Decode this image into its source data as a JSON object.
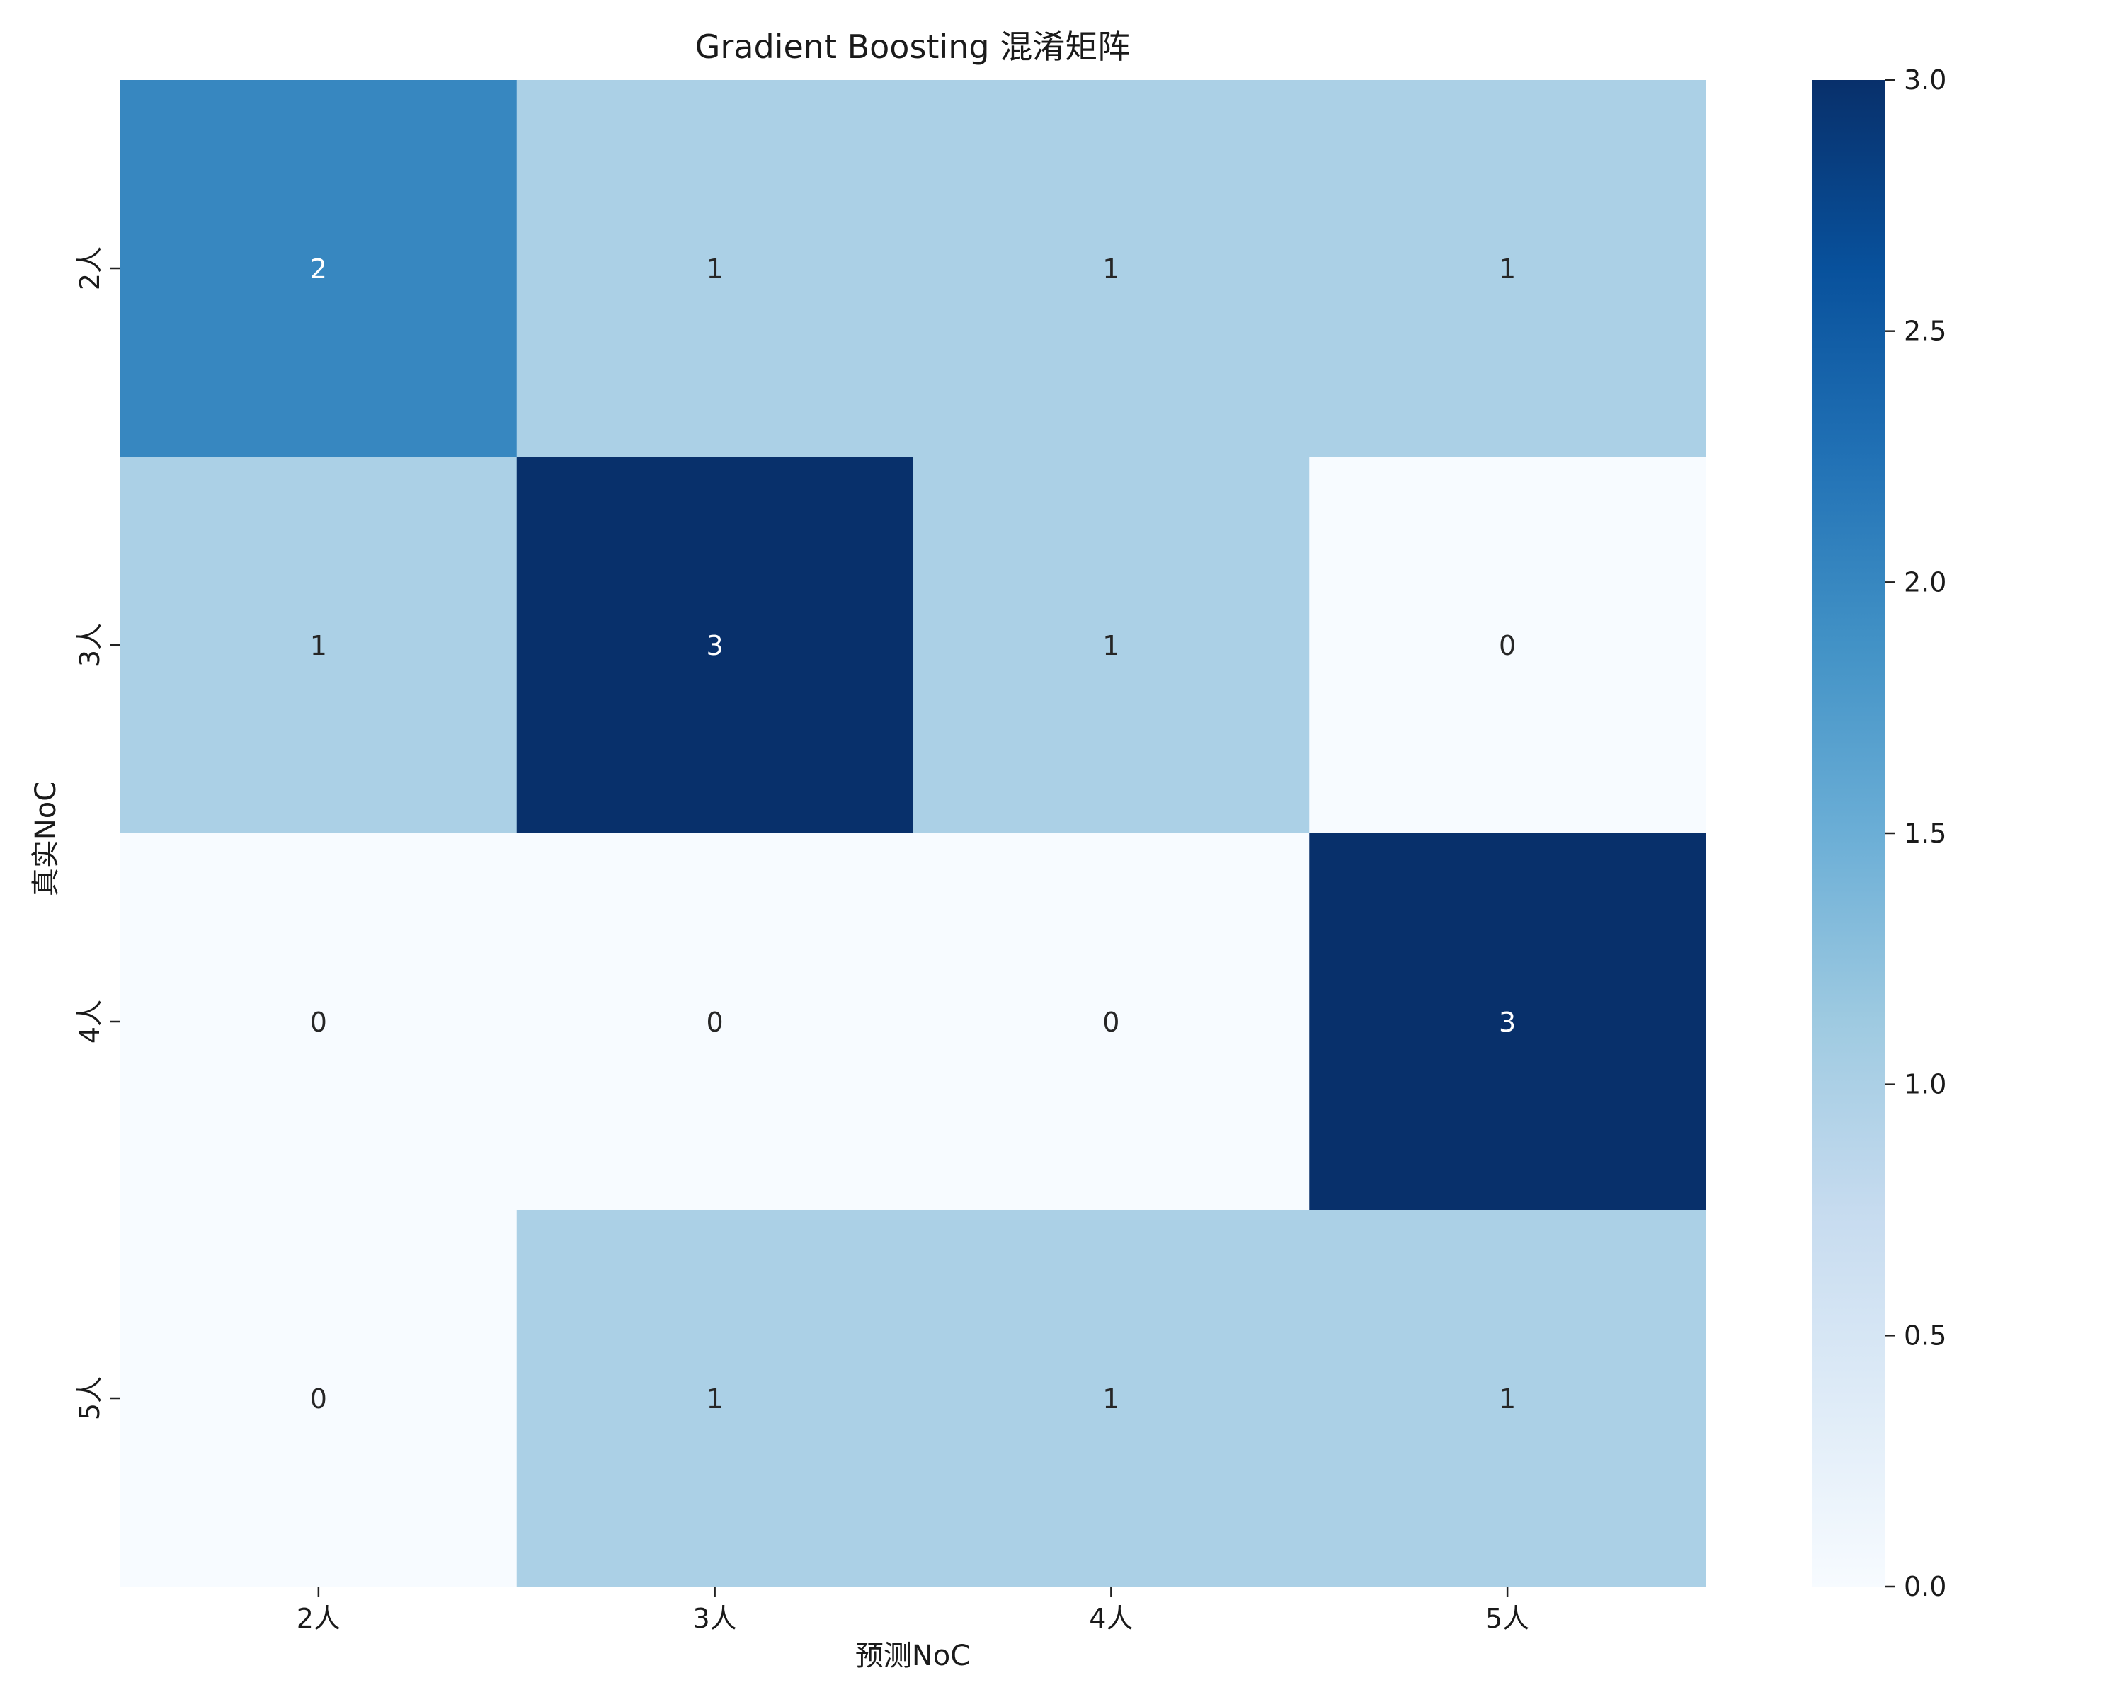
{
  "chart_data": {
    "type": "heatmap",
    "title": "Gradient Boosting 混淆矩阵",
    "xlabel": "预测NoC",
    "ylabel": "真实NoC",
    "x_categories": [
      "2人",
      "3人",
      "4人",
      "5人"
    ],
    "y_categories": [
      "2人",
      "3人",
      "4人",
      "5人"
    ],
    "values": [
      [
        2,
        1,
        1,
        1
      ],
      [
        1,
        3,
        1,
        0
      ],
      [
        0,
        0,
        0,
        3
      ],
      [
        0,
        1,
        1,
        1
      ]
    ],
    "colorbar": {
      "range": [
        0,
        3
      ],
      "ticks": [
        "0.0",
        "0.5",
        "1.0",
        "1.5",
        "2.0",
        "2.5",
        "3.0"
      ],
      "colormap": "Blues"
    },
    "colors": {
      "low": "#f7fbff",
      "high": "#08306b",
      "light_text": "#ffffff",
      "dark_text": "#262626"
    }
  }
}
